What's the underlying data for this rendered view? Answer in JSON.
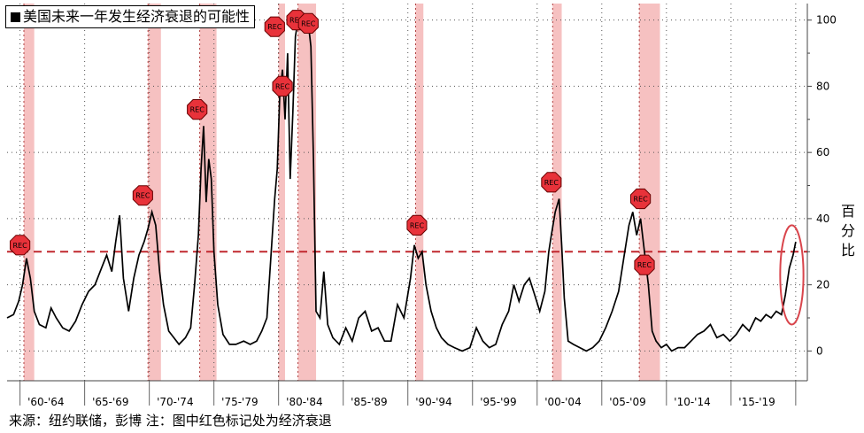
{
  "legend": {
    "label": "美国未来一年发生经济衰退的可能性"
  },
  "ylabel": "百分比",
  "source": "来源：纽约联储，彭博 注：图中红色标记处为经济衰退",
  "colors": {
    "line": "#000000",
    "recession": "#f4b6b6",
    "reference": "#c0282f",
    "marker": "#e8323a",
    "highlight": "#d9454c",
    "point": "#f0a030"
  },
  "chart_data": {
    "type": "line",
    "title": "",
    "xlabel": "",
    "ylabel": "百分比",
    "xlim": [
      1959.0,
      2020.9
    ],
    "ylim": [
      -9,
      105
    ],
    "yticks": [
      0,
      20,
      40,
      60,
      80,
      100
    ],
    "x_tick_labels": [
      "'60-'64",
      "'65-'69",
      "'70-'74",
      "'75-'79",
      "'80-'84",
      "'85-'89",
      "'90-'94",
      "'95-'99",
      "'00-'04",
      "'05-'09",
      "'10-'14",
      "'15-'19"
    ],
    "x_tick_centers": [
      1962.0,
      1967.0,
      1972.0,
      1977.0,
      1982.0,
      1987.0,
      1992.0,
      1997.0,
      2002.0,
      2007.0,
      2012.0,
      2017.0
    ],
    "grid": true,
    "legend_position": "top-left",
    "reference_line": {
      "y": 30,
      "style": "dashed"
    },
    "recessions": [
      [
        1960.3,
        1961.1
      ],
      [
        1969.9,
        1970.9
      ],
      [
        1973.9,
        1975.2
      ],
      [
        1980.0,
        1980.5
      ],
      [
        1981.5,
        1982.9
      ],
      [
        1990.6,
        1991.2
      ],
      [
        2001.2,
        2001.9
      ],
      [
        2007.9,
        2009.5
      ]
    ],
    "rec_markers": [
      {
        "x": 1960.0,
        "y": 32
      },
      {
        "x": 1969.5,
        "y": 47
      },
      {
        "x": 1973.7,
        "y": 73
      },
      {
        "x": 1979.7,
        "y": 98
      },
      {
        "x": 1980.3,
        "y": 80
      },
      {
        "x": 1981.4,
        "y": 100
      },
      {
        "x": 1982.3,
        "y": 99
      },
      {
        "x": 1990.7,
        "y": 38
      },
      {
        "x": 2001.1,
        "y": 51
      },
      {
        "x": 2008.0,
        "y": 46
      },
      {
        "x": 2008.3,
        "y": 26
      }
    ],
    "highlight_ellipse": {
      "x": 2019.7,
      "y": 23,
      "rx": 0.9,
      "ry": 15
    },
    "series": [
      {
        "values": [
          [
            1959.0,
            10
          ],
          [
            1959.5,
            11
          ],
          [
            1959.9,
            15
          ],
          [
            1960.2,
            20
          ],
          [
            1960.5,
            28
          ],
          [
            1960.8,
            22
          ],
          [
            1961.1,
            12
          ],
          [
            1961.5,
            8
          ],
          [
            1962.0,
            7
          ],
          [
            1962.4,
            13
          ],
          [
            1962.8,
            10
          ],
          [
            1963.3,
            7
          ],
          [
            1963.8,
            6
          ],
          [
            1964.3,
            9
          ],
          [
            1964.8,
            14
          ],
          [
            1965.3,
            18
          ],
          [
            1965.8,
            20
          ],
          [
            1966.3,
            25
          ],
          [
            1966.7,
            29
          ],
          [
            1967.1,
            24
          ],
          [
            1967.4,
            33
          ],
          [
            1967.7,
            41
          ],
          [
            1968.0,
            22
          ],
          [
            1968.4,
            12
          ],
          [
            1968.8,
            22
          ],
          [
            1969.2,
            29
          ],
          [
            1969.6,
            33
          ],
          [
            1969.9,
            37
          ],
          [
            1970.2,
            42
          ],
          [
            1970.5,
            38
          ],
          [
            1970.8,
            24
          ],
          [
            1971.1,
            14
          ],
          [
            1971.5,
            6
          ],
          [
            1971.9,
            4
          ],
          [
            1972.3,
            2
          ],
          [
            1972.8,
            4
          ],
          [
            1973.2,
            7
          ],
          [
            1973.5,
            20
          ],
          [
            1973.8,
            35
          ],
          [
            1974.0,
            55
          ],
          [
            1974.2,
            68
          ],
          [
            1974.4,
            45
          ],
          [
            1974.6,
            58
          ],
          [
            1974.8,
            52
          ],
          [
            1975.0,
            30
          ],
          [
            1975.3,
            14
          ],
          [
            1975.7,
            5
          ],
          [
            1976.2,
            2
          ],
          [
            1976.7,
            2
          ],
          [
            1977.3,
            3
          ],
          [
            1977.8,
            2
          ],
          [
            1978.3,
            3
          ],
          [
            1978.7,
            6
          ],
          [
            1979.1,
            10
          ],
          [
            1979.4,
            28
          ],
          [
            1979.7,
            46
          ],
          [
            1979.9,
            55
          ],
          [
            1980.1,
            78
          ],
          [
            1980.3,
            85
          ],
          [
            1980.5,
            70
          ],
          [
            1980.7,
            90
          ],
          [
            1980.9,
            52
          ],
          [
            1981.1,
            72
          ],
          [
            1981.3,
            95
          ],
          [
            1981.5,
            100
          ],
          [
            1981.7,
            98
          ],
          [
            1981.9,
            97
          ],
          [
            1982.1,
            97
          ],
          [
            1982.3,
            99
          ],
          [
            1982.5,
            92
          ],
          [
            1982.7,
            58
          ],
          [
            1982.9,
            12
          ],
          [
            1983.2,
            10
          ],
          [
            1983.5,
            24
          ],
          [
            1983.8,
            8
          ],
          [
            1984.2,
            4
          ],
          [
            1984.7,
            2
          ],
          [
            1985.2,
            7
          ],
          [
            1985.7,
            3
          ],
          [
            1986.2,
            10
          ],
          [
            1986.7,
            12
          ],
          [
            1987.2,
            6
          ],
          [
            1987.7,
            7
          ],
          [
            1988.2,
            3
          ],
          [
            1988.7,
            3
          ],
          [
            1989.2,
            14
          ],
          [
            1989.7,
            10
          ],
          [
            1990.2,
            22
          ],
          [
            1990.5,
            32
          ],
          [
            1990.8,
            28
          ],
          [
            1991.1,
            30
          ],
          [
            1991.4,
            20
          ],
          [
            1991.8,
            12
          ],
          [
            1992.2,
            7
          ],
          [
            1992.6,
            4
          ],
          [
            1993.1,
            2
          ],
          [
            1993.6,
            1
          ],
          [
            1994.2,
            0
          ],
          [
            1994.8,
            1
          ],
          [
            1995.3,
            7
          ],
          [
            1995.8,
            3
          ],
          [
            1996.3,
            1
          ],
          [
            1996.8,
            2
          ],
          [
            1997.3,
            8
          ],
          [
            1997.8,
            12
          ],
          [
            1998.2,
            20
          ],
          [
            1998.6,
            15
          ],
          [
            1999.0,
            20
          ],
          [
            1999.4,
            22
          ],
          [
            1999.8,
            17
          ],
          [
            2000.2,
            12
          ],
          [
            2000.6,
            18
          ],
          [
            2000.9,
            30
          ],
          [
            2001.1,
            35
          ],
          [
            2001.4,
            42
          ],
          [
            2001.7,
            46
          ],
          [
            2001.9,
            32
          ],
          [
            2002.1,
            16
          ],
          [
            2002.4,
            3
          ],
          [
            2002.8,
            2
          ],
          [
            2003.3,
            1
          ],
          [
            2003.8,
            0
          ],
          [
            2004.3,
            1
          ],
          [
            2004.8,
            3
          ],
          [
            2005.3,
            7
          ],
          [
            2005.8,
            12
          ],
          [
            2006.3,
            18
          ],
          [
            2006.7,
            28
          ],
          [
            2007.1,
            38
          ],
          [
            2007.4,
            42
          ],
          [
            2007.7,
            35
          ],
          [
            2008.0,
            40
          ],
          [
            2008.3,
            30
          ],
          [
            2008.6,
            20
          ],
          [
            2008.9,
            6
          ],
          [
            2009.2,
            3
          ],
          [
            2009.6,
            1
          ],
          [
            2010.0,
            2
          ],
          [
            2010.4,
            0
          ],
          [
            2010.9,
            1
          ],
          [
            2011.4,
            1
          ],
          [
            2011.9,
            3
          ],
          [
            2012.4,
            5
          ],
          [
            2012.9,
            6
          ],
          [
            2013.4,
            8
          ],
          [
            2013.9,
            4
          ],
          [
            2014.4,
            5
          ],
          [
            2014.9,
            3
          ],
          [
            2015.4,
            5
          ],
          [
            2015.9,
            8
          ],
          [
            2016.4,
            6
          ],
          [
            2016.9,
            10
          ],
          [
            2017.3,
            9
          ],
          [
            2017.7,
            11
          ],
          [
            2018.1,
            10
          ],
          [
            2018.5,
            12
          ],
          [
            2018.9,
            11
          ],
          [
            2019.2,
            17
          ],
          [
            2019.5,
            25
          ],
          [
            2019.8,
            29
          ],
          [
            2020.0,
            33
          ]
        ]
      }
    ]
  }
}
